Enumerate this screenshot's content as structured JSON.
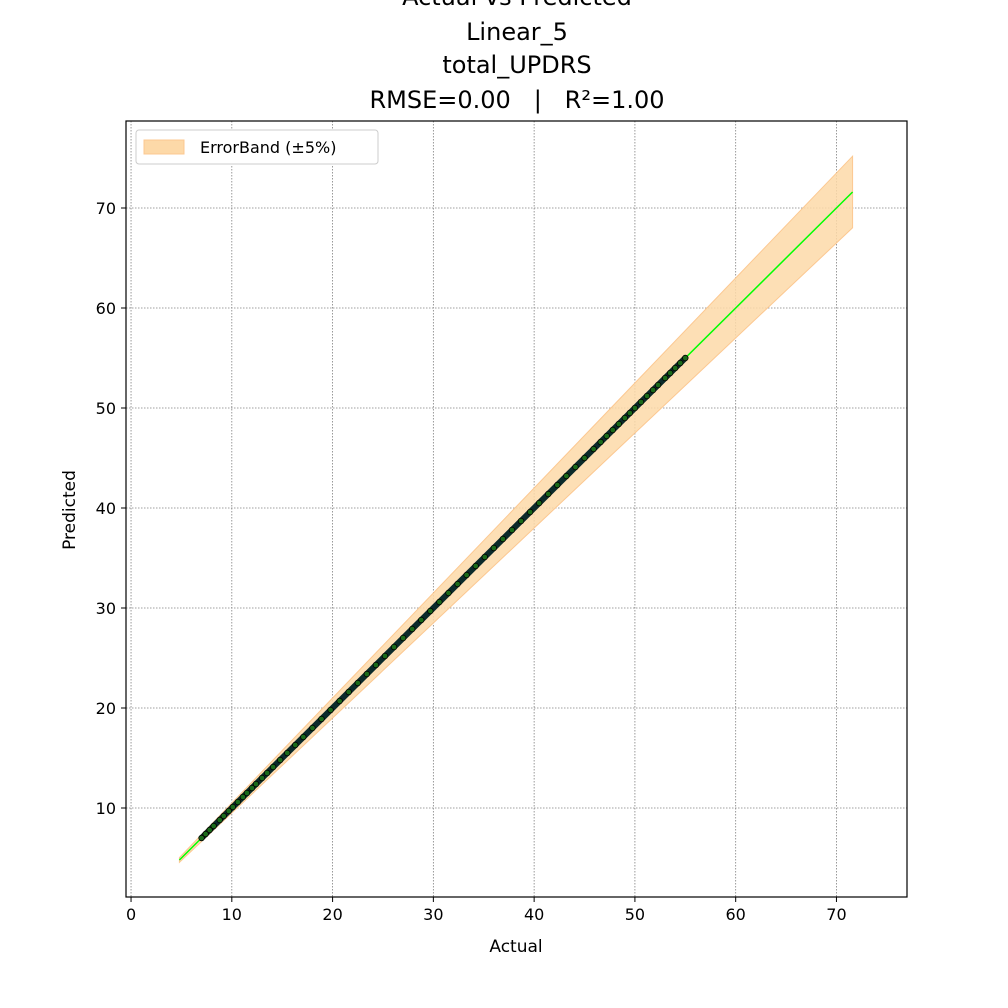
{
  "chart_data": {
    "type": "scatter",
    "title_lines": [
      "Actual vs Predicted",
      "Linear_5",
      "total_UPDRS",
      "RMSE=0.00   |   R²=1.00"
    ],
    "xlabel": "Actual",
    "ylabel": "Predicted",
    "xlim": [
      -0.5,
      77
    ],
    "ylim": [
      1.1,
      78.7
    ],
    "xticks": [
      0,
      10,
      20,
      30,
      40,
      50,
      60,
      70
    ],
    "yticks": [
      10,
      20,
      30,
      40,
      50,
      60,
      70
    ],
    "grid": true,
    "legend": {
      "position": "top-left",
      "entries": [
        "ErrorBand (±5%)"
      ]
    },
    "colors": {
      "band": "#fdd9a8",
      "band_edge": "#fcc891",
      "ideal_line": "#00ff00",
      "points_fill": "#1a6a1a",
      "points_edge": "#000000"
    },
    "ideal_line": {
      "x": [
        4.8,
        71.6
      ],
      "y": [
        4.8,
        71.6
      ]
    },
    "error_band": {
      "x": [
        4.8,
        71.6
      ],
      "pct": 5
    },
    "points": {
      "x": [
        7.0,
        7.4,
        7.8,
        8.2,
        8.8,
        9.2,
        9.7,
        10.1,
        10.6,
        11.1,
        11.5,
        12.0,
        12.4,
        13.0,
        13.5,
        14.1,
        14.8,
        15.5,
        16.3,
        17.1,
        18.0,
        18.9,
        19.8,
        20.7,
        21.6,
        22.5,
        23.4,
        24.3,
        25.2,
        26.1,
        27.0,
        27.9,
        28.8,
        29.7,
        30.6,
        31.5,
        32.4,
        33.3,
        34.2,
        35.1,
        36.0,
        36.9,
        37.8,
        38.7,
        39.6,
        40.5,
        41.4,
        42.3,
        43.2,
        44.1,
        45.0,
        45.9,
        46.6,
        47.2,
        47.8,
        48.4,
        49.0,
        49.5,
        50.0,
        50.6,
        51.2,
        51.8,
        52.3,
        53.0,
        53.5,
        54.0,
        54.5,
        55.0
      ],
      "y": [
        7.0,
        7.4,
        7.8,
        8.2,
        8.8,
        9.2,
        9.7,
        10.1,
        10.6,
        11.1,
        11.5,
        12.0,
        12.4,
        13.0,
        13.5,
        14.1,
        14.8,
        15.5,
        16.3,
        17.1,
        18.0,
        18.9,
        19.8,
        20.7,
        21.6,
        22.5,
        23.4,
        24.3,
        25.2,
        26.1,
        27.0,
        27.9,
        28.8,
        29.7,
        30.6,
        31.5,
        32.4,
        33.3,
        34.2,
        35.1,
        36.0,
        36.9,
        37.8,
        38.7,
        39.6,
        40.5,
        41.4,
        42.3,
        43.2,
        44.1,
        45.0,
        45.9,
        46.6,
        47.2,
        47.8,
        48.4,
        49.0,
        49.5,
        50.0,
        50.6,
        51.2,
        51.8,
        52.3,
        53.0,
        53.5,
        54.0,
        54.5,
        55.0
      ]
    }
  }
}
